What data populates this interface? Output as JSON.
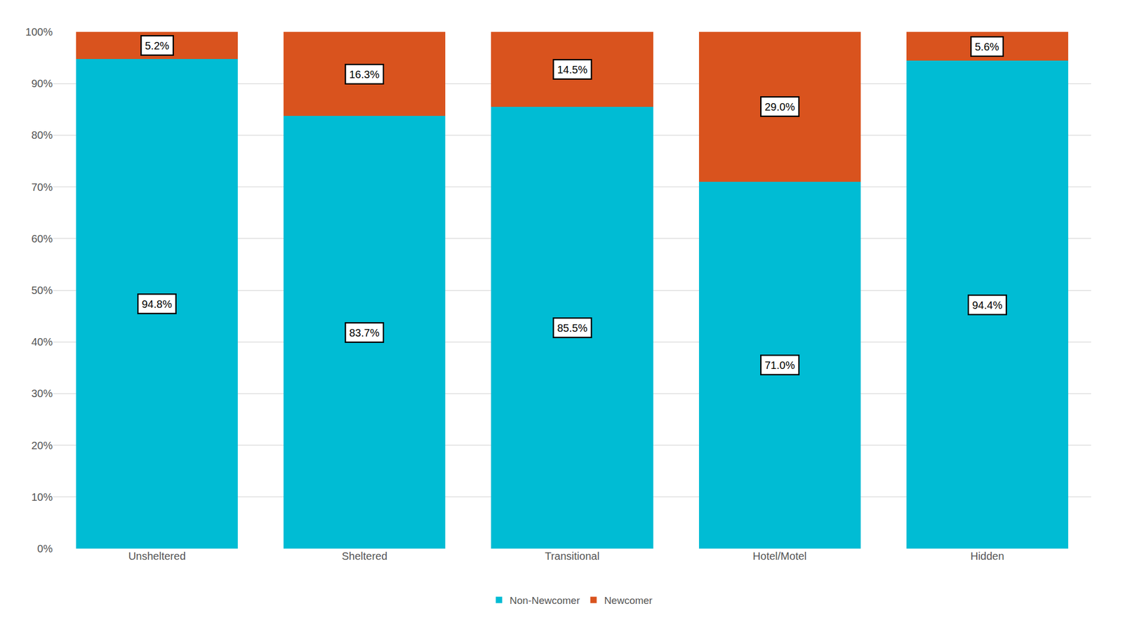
{
  "chart_data": {
    "type": "bar",
    "stacked": true,
    "categories": [
      "Unsheltered",
      "Sheltered",
      "Transitional",
      "Hotel/Motel",
      "Hidden"
    ],
    "series": [
      {
        "name": "Non-Newcomer",
        "color": "#00BCD4",
        "values": [
          94.8,
          83.7,
          85.5,
          71.0,
          94.4
        ],
        "value_labels": [
          "94.8%",
          "83.7%",
          "85.5%",
          "71.0%",
          "94.4%"
        ]
      },
      {
        "name": "Newcomer",
        "color": "#D9531E",
        "values": [
          5.2,
          16.3,
          14.5,
          29.0,
          5.6
        ],
        "value_labels": [
          "5.2%",
          "16.3%",
          "14.5%",
          "29.0%",
          "5.6%"
        ]
      }
    ],
    "ylim": [
      0,
      100
    ],
    "yticks": [
      {
        "value": 0,
        "label": "0%"
      },
      {
        "value": 10,
        "label": "10%"
      },
      {
        "value": 20,
        "label": "20%"
      },
      {
        "value": 30,
        "label": "30%"
      },
      {
        "value": 40,
        "label": "40%"
      },
      {
        "value": 50,
        "label": "50%"
      },
      {
        "value": 60,
        "label": "60%"
      },
      {
        "value": 70,
        "label": "70%"
      },
      {
        "value": 80,
        "label": "80%"
      },
      {
        "value": 90,
        "label": "90%"
      },
      {
        "value": 100,
        "label": "100%"
      }
    ],
    "grid": true,
    "legend": "bottom",
    "data_labels": true
  }
}
